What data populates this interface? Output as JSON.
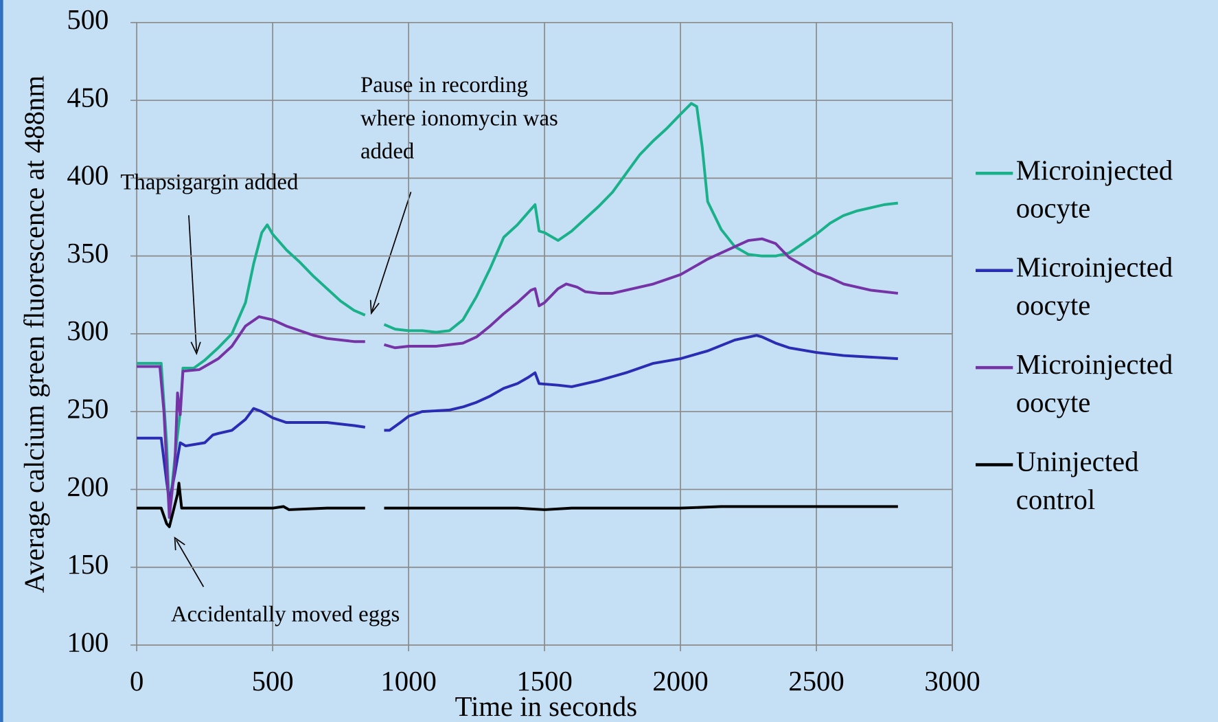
{
  "chart_data": {
    "type": "line",
    "x_label": "Time in seconds",
    "y_label": "Average calcium green fluorescence at 488nm",
    "xlim": [
      0,
      3000
    ],
    "xticks": [
      0,
      500,
      1000,
      1500,
      2000,
      2500,
      3000
    ],
    "ylim": [
      100,
      500
    ],
    "yticks": [
      100,
      150,
      200,
      250,
      300,
      350,
      400,
      450,
      500
    ],
    "grid": true,
    "legend": "right",
    "annotations": [
      {
        "lines": [
          "Thapsigargin added"
        ]
      },
      {
        "lines": [
          "Pause in recording",
          "where ionomycin was",
          "added"
        ]
      },
      {
        "lines": [
          "Accidentally moved eggs"
        ]
      }
    ],
    "series": [
      {
        "name": "Microinjected oocyte",
        "color": "#19b08a",
        "x": [
          0,
          90,
          110,
          120,
          140,
          160,
          170,
          210,
          250,
          300,
          350,
          400,
          430,
          460,
          480,
          500,
          550,
          600,
          650,
          700,
          750,
          800,
          840,
          875,
          910,
          950,
          1000,
          1050,
          1100,
          1150,
          1200,
          1250,
          1300,
          1350,
          1400,
          1440,
          1465,
          1480,
          1500,
          1550,
          1600,
          1650,
          1700,
          1750,
          1800,
          1850,
          1900,
          1950,
          2000,
          2040,
          2060,
          2080,
          2100,
          2150,
          2200,
          2250,
          2300,
          2350,
          2400,
          2450,
          2500,
          2550,
          2600,
          2650,
          2700,
          2750,
          2800
        ],
        "values": [
          281,
          281,
          230,
          185,
          220,
          250,
          278,
          278,
          283,
          291,
          300,
          320,
          345,
          365,
          370,
          364,
          354,
          346,
          337,
          329,
          321,
          315,
          312,
          null,
          306,
          303,
          302,
          302,
          301,
          302,
          309,
          324,
          342,
          362,
          370,
          378,
          383,
          366,
          365,
          360,
          366,
          374,
          382,
          391,
          403,
          415,
          424,
          432,
          441,
          448,
          446,
          420,
          385,
          367,
          356,
          351,
          350,
          350,
          352,
          358,
          364,
          371,
          376,
          379,
          381,
          383,
          384
        ]
      },
      {
        "name": "Microinjected oocyte",
        "color": "#2a2db3",
        "x": [
          0,
          90,
          110,
          120,
          140,
          160,
          180,
          250,
          280,
          300,
          350,
          400,
          430,
          460,
          500,
          550,
          600,
          700,
          800,
          840,
          875,
          910,
          930,
          970,
          1000,
          1050,
          1150,
          1200,
          1250,
          1300,
          1350,
          1400,
          1440,
          1465,
          1480,
          1550,
          1600,
          1650,
          1700,
          1800,
          1900,
          2000,
          2100,
          2200,
          2280,
          2300,
          2350,
          2400,
          2500,
          2600,
          2700,
          2800
        ],
        "values": [
          233,
          233,
          205,
          192,
          210,
          230,
          228,
          230,
          235,
          236,
          238,
          245,
          252,
          250,
          246,
          243,
          243,
          243,
          241,
          240,
          null,
          238,
          238,
          243,
          247,
          250,
          251,
          253,
          256,
          260,
          265,
          268,
          272,
          275,
          268,
          267,
          266,
          268,
          270,
          275,
          281,
          284,
          289,
          296,
          299,
          298,
          294,
          291,
          288,
          286,
          285,
          284
        ]
      },
      {
        "name": "Microinjected oocyte",
        "color": "#7533a6",
        "x": [
          0,
          85,
          100,
          120,
          140,
          150,
          160,
          170,
          230,
          260,
          300,
          350,
          400,
          450,
          500,
          550,
          600,
          650,
          700,
          800,
          840,
          875,
          910,
          950,
          1000,
          1100,
          1200,
          1250,
          1300,
          1350,
          1400,
          1450,
          1465,
          1480,
          1500,
          1550,
          1580,
          1620,
          1650,
          1700,
          1750,
          1800,
          1900,
          2000,
          2100,
          2200,
          2250,
          2300,
          2350,
          2400,
          2450,
          2500,
          2550,
          2600,
          2700,
          2800
        ],
        "values": [
          279,
          279,
          250,
          182,
          215,
          262,
          248,
          276,
          277,
          280,
          284,
          292,
          305,
          311,
          309,
          305,
          302,
          299,
          297,
          295,
          295,
          null,
          293,
          291,
          292,
          292,
          294,
          298,
          305,
          313,
          320,
          328,
          329,
          318,
          320,
          329,
          332,
          330,
          327,
          326,
          326,
          328,
          332,
          338,
          348,
          356,
          360,
          361,
          358,
          349,
          344,
          339,
          336,
          332,
          328,
          326
        ]
      },
      {
        "name": "Uninjected control",
        "color": "#000000",
        "x": [
          0,
          90,
          110,
          120,
          140,
          150,
          155,
          165,
          200,
          300,
          400,
          500,
          540,
          560,
          700,
          840,
          875,
          910,
          1000,
          1200,
          1400,
          1500,
          1600,
          1800,
          2000,
          2150,
          2300,
          2500,
          2800
        ],
        "values": [
          188,
          188,
          178,
          176,
          190,
          197,
          204,
          188,
          188,
          188,
          188,
          188,
          189,
          187,
          188,
          188,
          null,
          188,
          188,
          188,
          188,
          187,
          188,
          188,
          188,
          189,
          189,
          189,
          189
        ]
      }
    ]
  }
}
